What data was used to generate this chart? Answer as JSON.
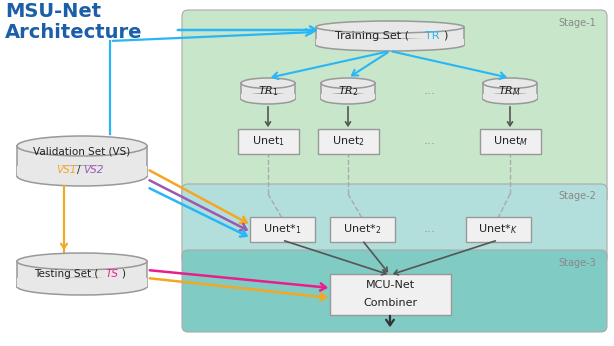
{
  "bg_color": "#ffffff",
  "stage1_bg": "#c8e6c9",
  "stage2_bg": "#b2dfdb",
  "stage3_bg": "#80cbc4",
  "stage_label_color": "#888888",
  "arrow_blue": "#29b6f6",
  "arrow_orange": "#f5a623",
  "arrow_purple": "#9b59b6",
  "arrow_blue2": "#5b9bd5",
  "arrow_magenta": "#e91e8c",
  "dark": "#555555",
  "cyl_fill": "#e8e8e8",
  "cyl_edge": "#999999",
  "box_fill": "#f0f0f0",
  "box_edge": "#999999",
  "text_color": "#222222",
  "tr_color": "#29b6f6",
  "ts_color": "#e91e8c",
  "vs1_color": "#f5a623",
  "vs2_color": "#9b59b6",
  "title_color": "#1a5fa8",
  "dots_color": "#999999",
  "title": "MSU-Net\nArchitecture",
  "stage1_label": "Stage-1",
  "stage2_label": "Stage-2",
  "stage3_label": "Stage-3"
}
